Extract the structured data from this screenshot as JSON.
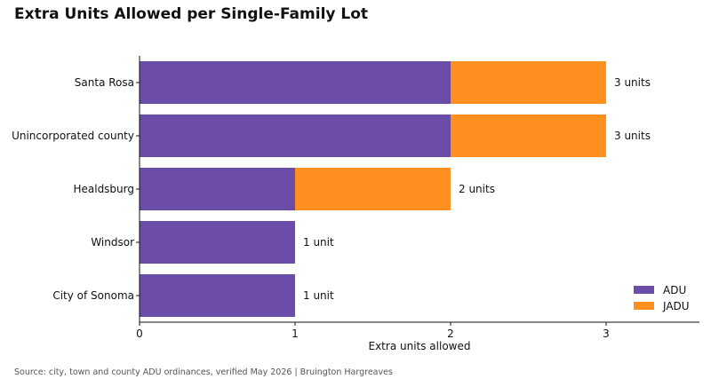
{
  "chart_data": {
    "type": "bar",
    "orientation": "horizontal",
    "stacked": true,
    "title": "Extra Units Allowed per Single-Family Lot",
    "xlabel": "Extra units allowed",
    "ylabel": "",
    "categories": [
      "Santa Rosa",
      "Unincorporated county",
      "Healdsburg",
      "Windsor",
      "City of Sonoma"
    ],
    "series": [
      {
        "name": "ADU",
        "color": "#6b4ca8",
        "values": [
          2,
          2,
          1,
          1,
          1
        ]
      },
      {
        "name": "JADU",
        "color": "#ff9020",
        "values": [
          1,
          1,
          1,
          0,
          0
        ]
      }
    ],
    "data_labels": [
      "3 units",
      "3 units",
      "2 units",
      "1 unit",
      "1 unit"
    ],
    "xlim": [
      0,
      3.6
    ],
    "xticks": [
      0,
      1,
      2,
      3
    ],
    "grid": false,
    "legend_position": "bottom-right",
    "source": "Source: city, town and county ADU ordinances, verified May 2026 | Bruington Hargreaves"
  }
}
